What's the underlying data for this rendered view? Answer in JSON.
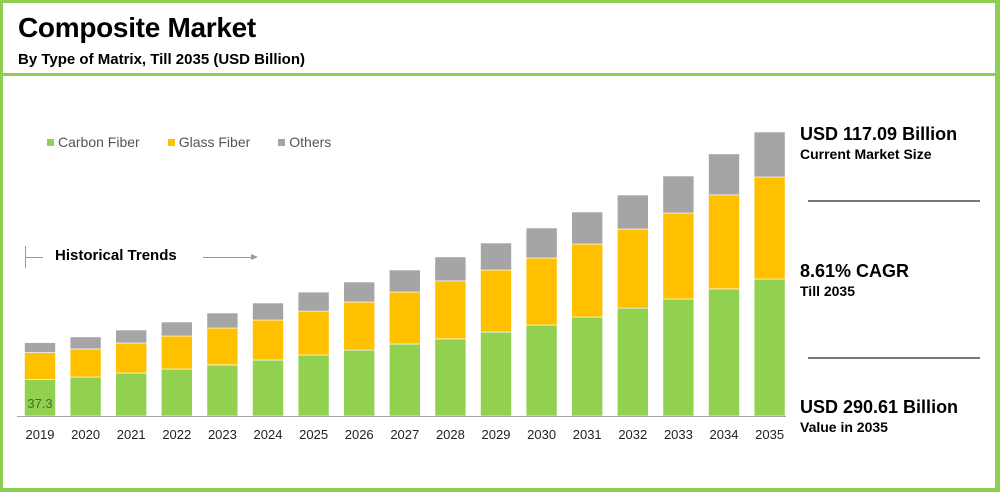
{
  "header": {
    "title": "Composite Market",
    "subtitle": "By Type of Matrix, Till 2035 (USD Billion)"
  },
  "annotation": {
    "historical_trends": "Historical Trends"
  },
  "highlights": [
    {
      "value": "USD 117.09 Billion",
      "caption": "Current Market Size"
    },
    {
      "value": "8.61% CAGR",
      "caption": "Till 2035"
    },
    {
      "value": "USD 290.61 Billion",
      "caption": "Value in 2035"
    }
  ],
  "colors": {
    "carbon_fiber": "#92d050",
    "glass_fiber": "#ffc000",
    "others": "#a5a5a5",
    "border": "#8fce54"
  },
  "chart_data": {
    "type": "bar",
    "stacked": true,
    "title": "Composite Market",
    "subtitle": "By Type of Matrix, Till 2035 (USD Billion)",
    "xlabel": "",
    "ylabel": "USD Billion",
    "ylim": [
      0,
      290.61
    ],
    "grid": false,
    "legend_position": "top-left",
    "categories": [
      "2019",
      "2020",
      "2021",
      "2022",
      "2023",
      "2024",
      "2025",
      "2026",
      "2027",
      "2028",
      "2029",
      "2030",
      "2031",
      "2032",
      "2033",
      "2034",
      "2035"
    ],
    "series": [
      {
        "name": "Carbon Fiber",
        "color": "#92d050",
        "values": [
          37.3,
          39.9,
          44.0,
          48.1,
          52.2,
          57.3,
          62.4,
          67.5,
          73.7,
          78.8,
          86.0,
          93.1,
          101.3,
          110.5,
          119.7,
          130.0,
          140.2
        ]
      },
      {
        "name": "Glass Fiber",
        "color": "#ffc000",
        "values": [
          27.6,
          28.7,
          30.7,
          33.8,
          37.9,
          40.9,
          45.0,
          49.1,
          53.2,
          59.4,
          63.4,
          68.6,
          74.7,
          80.8,
          88.0,
          96.2,
          104.4
        ]
      },
      {
        "name": "Others",
        "color": "#a5a5a5",
        "values": [
          10.2,
          12.3,
          13.3,
          14.3,
          15.3,
          17.4,
          19.4,
          20.5,
          22.5,
          24.6,
          27.6,
          30.7,
          32.7,
          34.8,
          37.9,
          42.0,
          46.0
        ]
      }
    ],
    "data_labels": [
      {
        "series": "Carbon Fiber",
        "category": "2019",
        "text": "37.3"
      }
    ]
  }
}
